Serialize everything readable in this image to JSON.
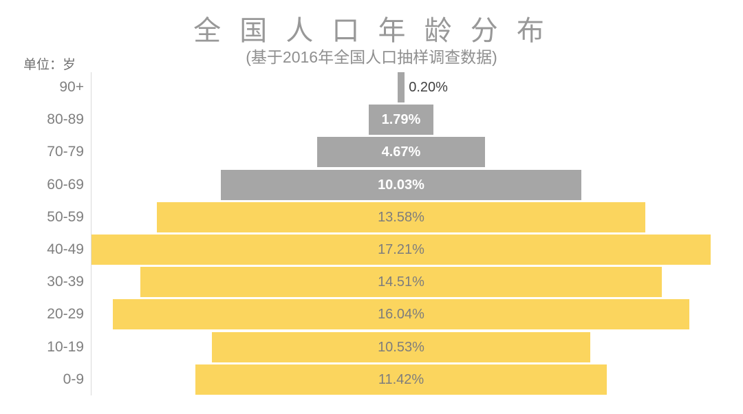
{
  "header": {
    "title": "全 国 人 口 年 龄 分 布",
    "subtitle": "(基于2016年全国人口抽样调查数据)",
    "unit_label": "单位：岁"
  },
  "colors": {
    "senior_bar_gray": "#A6A6A6",
    "young_bar_yellow": "#FBD55E",
    "axis_line": "#D9D9D9",
    "title_text": "#989898",
    "category_text": "#7F7F7F",
    "label_on_gray": "#FFFFFF",
    "label_on_yellow": "#7D7D7D",
    "label_outside_dark": "#404040"
  },
  "chart_data": {
    "type": "bar",
    "orientation": "horizontal_centered_pyramid",
    "title": "全国人口年龄分布",
    "subtitle": "(基于2016年全国人口抽样调查数据)",
    "unit": "岁",
    "categories": [
      "90+",
      "80-89",
      "70-79",
      "60-69",
      "50-59",
      "40-49",
      "30-39",
      "20-29",
      "10-19",
      "0-9"
    ],
    "values": [
      0.2,
      1.79,
      4.67,
      10.03,
      13.58,
      17.21,
      14.51,
      16.04,
      10.53,
      11.42
    ],
    "value_labels": [
      "0.20%",
      "1.79%",
      "4.67%",
      "10.03%",
      "13.58%",
      "17.21%",
      "14.51%",
      "16.04%",
      "10.53%",
      "11.42%"
    ],
    "bar_colors": [
      "#A6A6A6",
      "#A6A6A6",
      "#A6A6A6",
      "#A6A6A6",
      "#FBD55E",
      "#FBD55E",
      "#FBD55E",
      "#FBD55E",
      "#FBD55E",
      "#FBD55E"
    ],
    "value_label_colors": [
      "#404040",
      "#FFFFFF",
      "#FFFFFF",
      "#FFFFFF",
      "#7D7D7D",
      "#7D7D7D",
      "#7D7D7D",
      "#7D7D7D",
      "#7D7D7D",
      "#7D7D7D"
    ],
    "value_label_bold": [
      false,
      true,
      true,
      true,
      false,
      false,
      false,
      false,
      false,
      false
    ],
    "value_label_placement": [
      "outside-right",
      "inside",
      "inside",
      "inside",
      "inside",
      "inside",
      "inside",
      "inside",
      "inside",
      "inside"
    ],
    "xlim": [
      0,
      17.5
    ],
    "grid": "off",
    "legend": "none"
  }
}
